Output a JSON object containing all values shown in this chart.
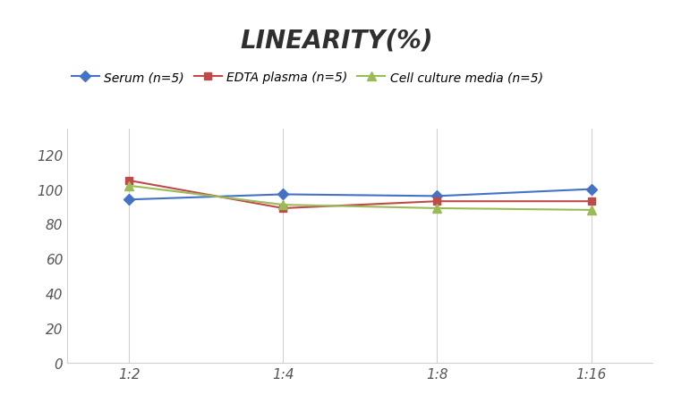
{
  "title": "LINEARITY(%)",
  "x_labels": [
    "1:2",
    "1:4",
    "1:8",
    "1:16"
  ],
  "x_positions": [
    0,
    1,
    2,
    3
  ],
  "series": [
    {
      "label": "Serum (n=5)",
      "values": [
        94,
        97,
        96,
        100
      ],
      "color": "#4472C4",
      "marker": "D",
      "marker_size": 6,
      "linewidth": 1.5
    },
    {
      "label": "EDTA plasma (n=5)",
      "values": [
        105,
        89,
        93,
        93
      ],
      "color": "#BE4B48",
      "marker": "s",
      "marker_size": 6,
      "linewidth": 1.5
    },
    {
      "label": "Cell culture media (n=5)",
      "values": [
        102,
        91,
        89,
        88
      ],
      "color": "#9BBB59",
      "marker": "^",
      "marker_size": 7,
      "linewidth": 1.5
    }
  ],
  "ylim": [
    0,
    135
  ],
  "yticks": [
    0,
    20,
    40,
    60,
    80,
    100,
    120
  ],
  "grid_color": "#D0D0D0",
  "background_color": "#FFFFFF",
  "title_fontsize": 20,
  "legend_fontsize": 10,
  "tick_fontsize": 11,
  "tick_label_color": "#555555"
}
